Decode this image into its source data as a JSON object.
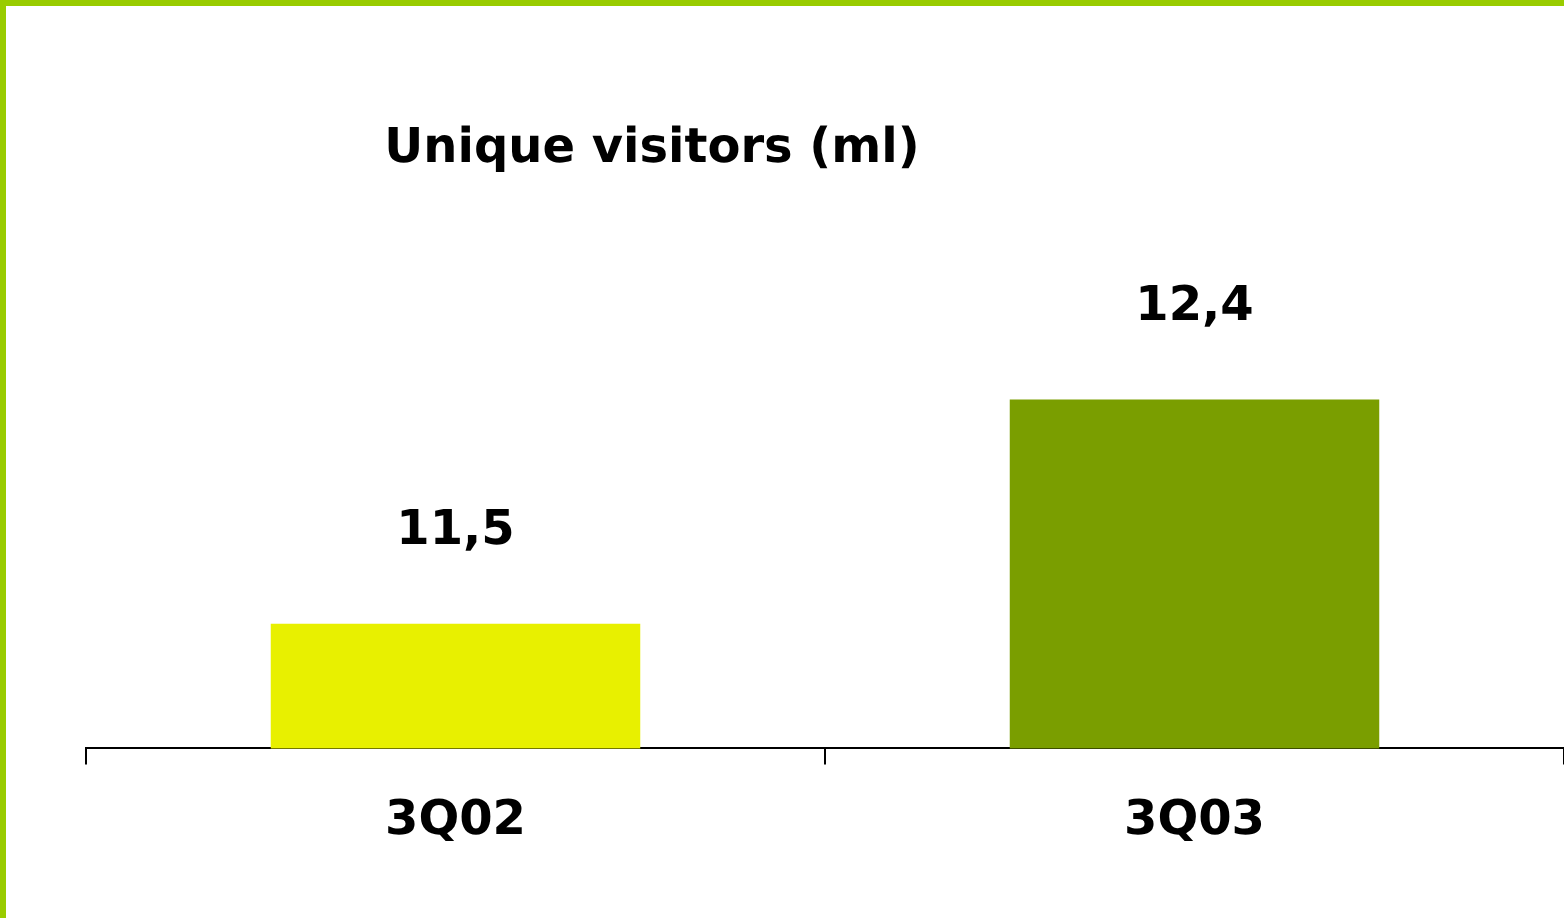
{
  "chart_data": {
    "type": "bar",
    "title": "Unique visitors (ml)",
    "categories": [
      "3Q02",
      "3Q03"
    ],
    "values": [
      11.5,
      12.4
    ],
    "colors": [
      "#e8f000",
      "#7a9e00"
    ],
    "value_labels": [
      "11,5",
      "12,4"
    ],
    "tick_labels": "x",
    "grid": false,
    "legend": false
  }
}
